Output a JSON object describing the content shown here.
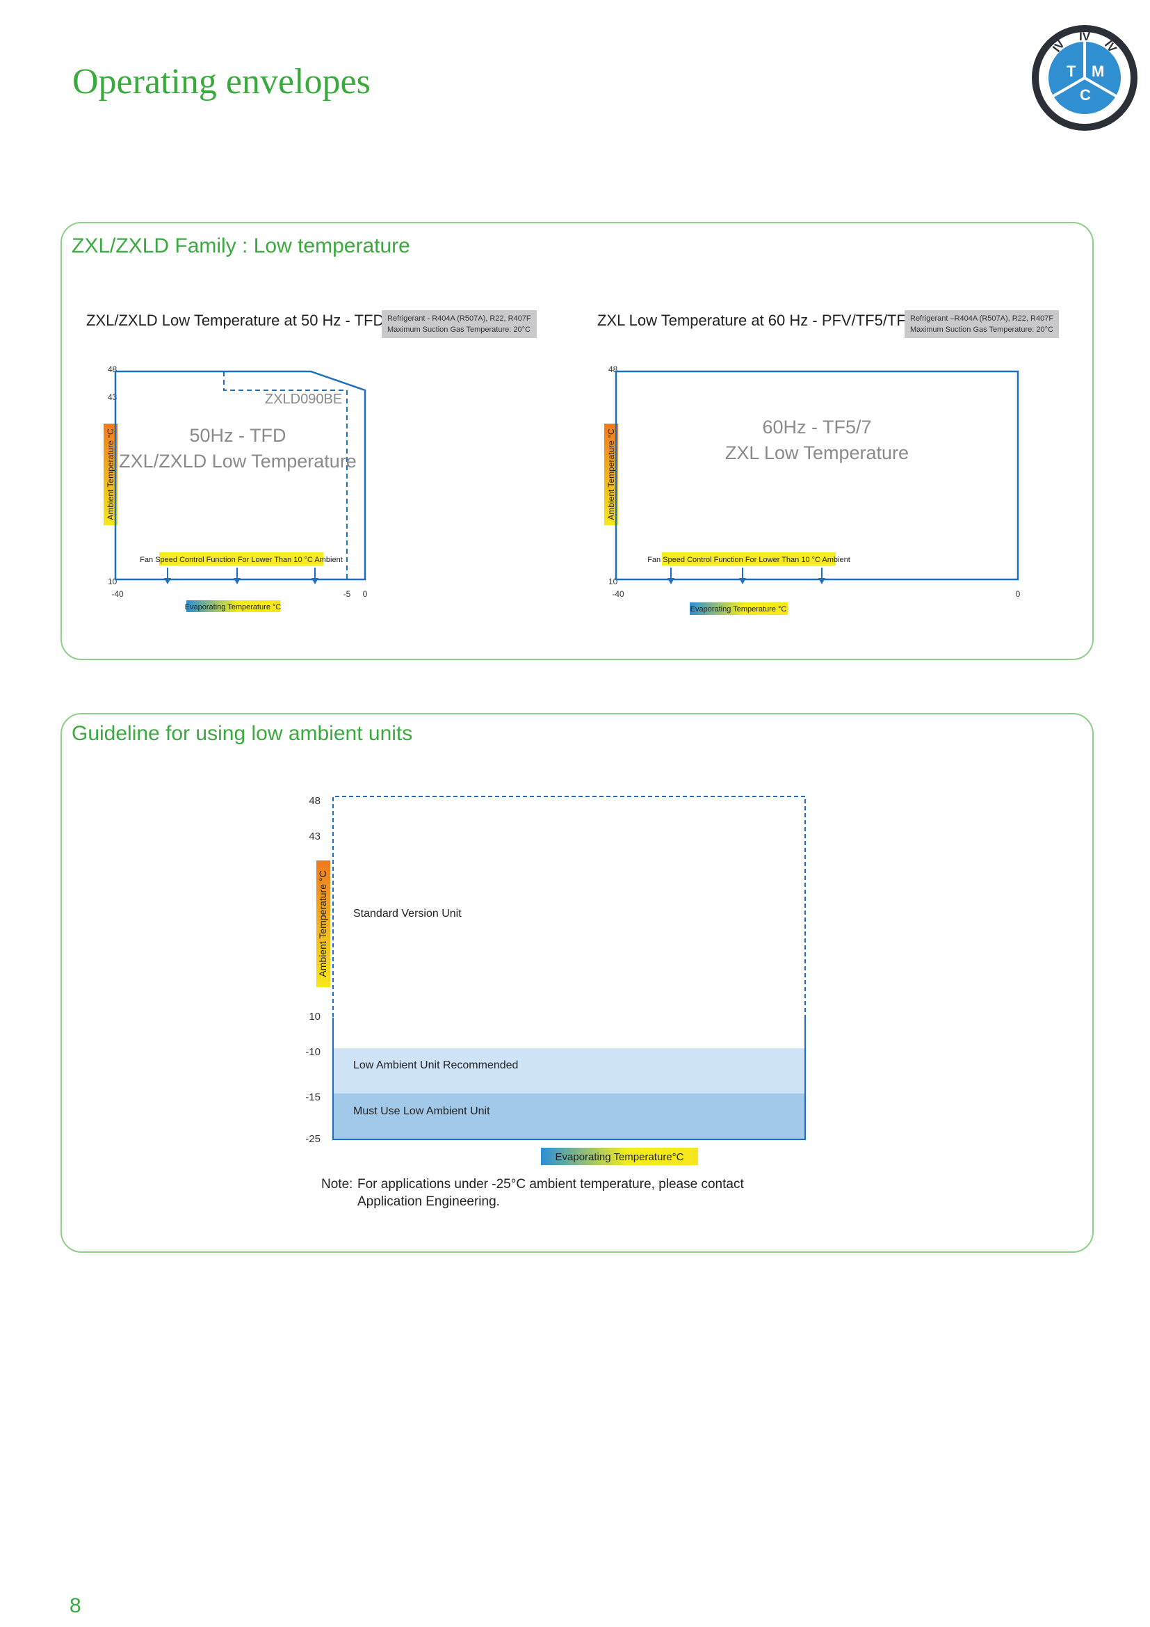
{
  "page": {
    "title": "Operating envelopes",
    "number": "8"
  },
  "logo": {
    "ring": [
      "IV",
      "IV",
      "IV"
    ],
    "letters": [
      "T",
      "M",
      "C"
    ]
  },
  "section1": {
    "title": "ZXL/ZXLD Family : Low temperature",
    "chart_data": [
      {
        "type": "area",
        "title": "ZXL/ZXLD Low Temperature at 50 Hz - TFD",
        "refrigerant_lines": [
          "Refrigerant - R404A (R507A), R22, R407F",
          "Maximum Suction Gas Temperature: 20°C"
        ],
        "xlabel": "Evaporating Temperature °C",
        "ylabel": "Ambient Temperature °C",
        "xticks": [
          "-40",
          "-5",
          "0"
        ],
        "yticks": [
          "48",
          "43",
          "10"
        ],
        "series": [
          {
            "name": "50Hz - TFD",
            "x": [
              -40,
              -40,
              -20,
              -12,
              0,
              0
            ],
            "y": [
              10,
              48,
              48,
              48,
              43,
              10
            ]
          },
          {
            "name": "ZXLD090BE",
            "x": [
              -20,
              -20,
              -5,
              -5
            ],
            "y": [
              48,
              43,
              43,
              10
            ]
          }
        ],
        "annotations": {
          "line1": "50Hz - TFD",
          "line2": "ZXL/ZXLD Low Temperature",
          "model": "ZXLD090BE",
          "fan": "Fan Speed Control Function For Lower Than 10 °C Ambient"
        }
      },
      {
        "type": "area",
        "title": "ZXL Low Temperature at 60 Hz - PFV/TF5/TF7",
        "refrigerant_lines": [
          "Refrigerant –R404A (R507A), R22, R407F",
          "Maximum Suction Gas Temperature: 20°C"
        ],
        "xlabel": "Evaporating Temperature °C",
        "ylabel": "Ambient Temperature °C",
        "xticks": [
          "-40",
          "0"
        ],
        "yticks": [
          "48",
          "10"
        ],
        "series": [
          {
            "name": "60Hz - TF5/7",
            "x": [
              -40,
              -40,
              0,
              0
            ],
            "y": [
              10,
              48,
              48,
              10
            ]
          }
        ],
        "annotations": {
          "line1": "60Hz - TF5/7",
          "line2": "ZXL Low Temperature",
          "fan": "Fan Speed Control Function For Lower Than 10 °C Ambient"
        }
      }
    ]
  },
  "section2": {
    "title": "Guideline for using low ambient units",
    "chart_data": {
      "type": "area",
      "xlabel": "Evaporating Temperature°C",
      "ylabel": "Ambient Temperature °C",
      "yticks": [
        "48",
        "43",
        "10",
        "-10",
        "-15",
        "-25"
      ],
      "regions": [
        {
          "name": "Standard Version Unit",
          "y_range": [
            -10,
            48
          ],
          "color": "#ffffff"
        },
        {
          "name": "Low Ambient Unit Recommended",
          "y_range": [
            -15,
            -10
          ],
          "color": "#cfe3f7"
        },
        {
          "name": "Must Use Low Ambient Unit",
          "y_range": [
            -25,
            -15
          ],
          "color": "#a2c8ea"
        }
      ]
    },
    "note_label": "Note:",
    "note_text": "For applications under -25°C ambient temperature, please contact Application Engineering."
  },
  "colors": {
    "green": "#3aaa3f",
    "panel_border": "#8ecf88",
    "envelope_blue": "#1f6fc0",
    "gray_box": "#c9c9cb"
  }
}
